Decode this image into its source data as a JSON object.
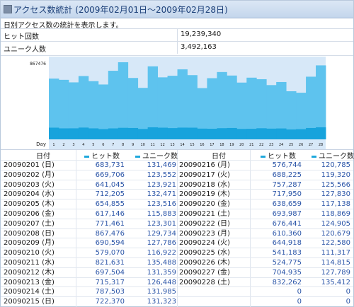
{
  "header": {
    "title": "アクセス数統計 (2009年02月01日〜2009年02月28日)",
    "description": "日別アクセス数の統計を表示します。"
  },
  "summary": {
    "hits_label": "ヒット回数",
    "hits_value": "19,239,340",
    "unique_label": "ユニーク人数",
    "unique_value": "3,492,163"
  },
  "chart_data": {
    "type": "area",
    "x_label": "Day",
    "y_max_label": "867476",
    "ylim": [
      0,
      867476
    ],
    "x": [
      "1",
      "2",
      "3",
      "4",
      "5",
      "6",
      "7",
      "8",
      "9",
      "10",
      "11",
      "12",
      "13",
      "14",
      "15",
      "16",
      "17",
      "18",
      "19",
      "20",
      "21",
      "22",
      "23",
      "24",
      "25",
      "26",
      "27",
      "28"
    ],
    "series": [
      {
        "values": [
          683731,
          669706,
          641045,
          712205,
          654855,
          617146,
          771461,
          867476,
          690594,
          579070,
          821631,
          697504,
          715317,
          787503,
          722370,
          576744,
          688225,
          757287,
          717950,
          638659,
          693987,
          676441,
          610360,
          644918,
          541183,
          524775,
          704935,
          832262
        ],
        "color": "#5ec3ee"
      },
      {
        "values": [
          131469,
          123552,
          123921,
          132471,
          123516,
          115883,
          123301,
          129734,
          127786,
          116922,
          135488,
          131359,
          126448,
          131985,
          131323,
          120785,
          119320,
          125566,
          127830,
          117138,
          118869,
          124905,
          120679,
          122580,
          111317,
          114815,
          127789,
          135412
        ],
        "color": "#17a3dc"
      }
    ]
  },
  "table": {
    "headers": {
      "date": "日付",
      "hits": "ヒット数",
      "unique": "ユニーク数"
    },
    "left": [
      {
        "date": "20090201 (日)",
        "hits": "683,731",
        "unique": "131,469"
      },
      {
        "date": "20090202 (月)",
        "hits": "669,706",
        "unique": "123,552"
      },
      {
        "date": "20090203 (火)",
        "hits": "641,045",
        "unique": "123,921"
      },
      {
        "date": "20090204 (水)",
        "hits": "712,205",
        "unique": "132,471"
      },
      {
        "date": "20090205 (木)",
        "hits": "654,855",
        "unique": "123,516"
      },
      {
        "date": "20090206 (金)",
        "hits": "617,146",
        "unique": "115,883"
      },
      {
        "date": "20090207 (土)",
        "hits": "771,461",
        "unique": "123,301"
      },
      {
        "date": "20090208 (日)",
        "hits": "867,476",
        "unique": "129,734"
      },
      {
        "date": "20090209 (月)",
        "hits": "690,594",
        "unique": "127,786"
      },
      {
        "date": "20090210 (火)",
        "hits": "579,070",
        "unique": "116,922"
      },
      {
        "date": "20090211 (水)",
        "hits": "821,631",
        "unique": "135,488"
      },
      {
        "date": "20090212 (木)",
        "hits": "697,504",
        "unique": "131,359"
      },
      {
        "date": "20090213 (金)",
        "hits": "715,317",
        "unique": "126,448"
      },
      {
        "date": "20090214 (土)",
        "hits": "787,503",
        "unique": "131,985"
      },
      {
        "date": "20090215 (日)",
        "hits": "722,370",
        "unique": "131,323"
      }
    ],
    "right": [
      {
        "date": "20090216 (月)",
        "hits": "576,744",
        "unique": "120,785"
      },
      {
        "date": "20090217 (火)",
        "hits": "688,225",
        "unique": "119,320"
      },
      {
        "date": "20090218 (水)",
        "hits": "757,287",
        "unique": "125,566"
      },
      {
        "date": "20090219 (木)",
        "hits": "717,950",
        "unique": "127,830"
      },
      {
        "date": "20090220 (金)",
        "hits": "638,659",
        "unique": "117,138"
      },
      {
        "date": "20090221 (土)",
        "hits": "693,987",
        "unique": "118,869"
      },
      {
        "date": "20090222 (日)",
        "hits": "676,441",
        "unique": "124,905"
      },
      {
        "date": "20090223 (月)",
        "hits": "610,360",
        "unique": "120,679"
      },
      {
        "date": "20090224 (火)",
        "hits": "644,918",
        "unique": "122,580"
      },
      {
        "date": "20090225 (水)",
        "hits": "541,183",
        "unique": "111,317"
      },
      {
        "date": "20090226 (木)",
        "hits": "524,775",
        "unique": "114,815"
      },
      {
        "date": "20090227 (金)",
        "hits": "704,935",
        "unique": "127,789"
      },
      {
        "date": "20090228 (土)",
        "hits": "832,262",
        "unique": "135,412"
      },
      {
        "date": "",
        "hits": "0",
        "unique": "0"
      },
      {
        "date": "",
        "hits": "0",
        "unique": "0"
      }
    ]
  }
}
